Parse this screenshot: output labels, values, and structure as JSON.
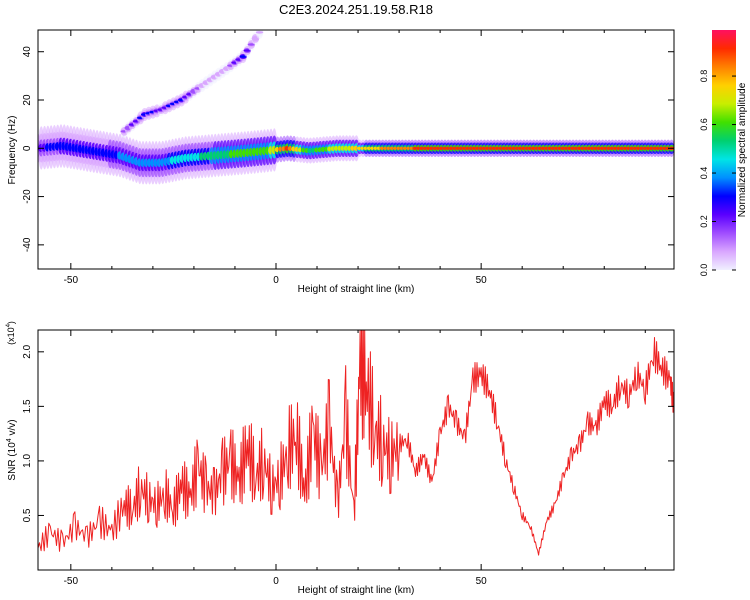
{
  "figure_title": "C2E3.2024.251.19.58.R18",
  "chart_data": [
    {
      "type": "heatmap",
      "xlabel": "Height of straight line (km)",
      "ylabel": "Frequency (Hz)",
      "xlim": [
        -58,
        97
      ],
      "ylim": [
        -50,
        49
      ],
      "x_ticks": [
        -50,
        0,
        50
      ],
      "y_ticks": [
        40,
        20,
        0,
        -20,
        -40
      ],
      "colorbar": {
        "label": "Normalized spectral amplitude",
        "range": [
          0,
          0.99
        ],
        "ticks": [
          "0.0",
          "0.2",
          "0.4",
          "0.6",
          "0.8"
        ],
        "colors": [
          "#f0f0ff",
          "#d9a6ff",
          "#a04dff",
          "#5a00ff",
          "#0000ff",
          "#0090ff",
          "#00e5e5",
          "#00d070",
          "#40e000",
          "#c8ee00",
          "#ffd000",
          "#ff8000",
          "#ff2a00",
          "#ff1060"
        ]
      },
      "ridges": [
        {
          "description": "main spectral ridge",
          "points": [
            [
              -58,
              0
            ],
            [
              -52,
              1
            ],
            [
              -45,
              -1
            ],
            [
              -38,
              -3
            ],
            [
              -33,
              -6
            ],
            [
              -28,
              -6
            ],
            [
              -22,
              -4
            ],
            [
              -15,
              -3
            ],
            [
              -8,
              -2
            ],
            [
              -2,
              -1
            ],
            [
              3,
              0
            ],
            [
              8,
              -1
            ],
            [
              15,
              0
            ],
            [
              25,
              0
            ],
            [
              40,
              0
            ],
            [
              60,
              0
            ],
            [
              80,
              0
            ],
            [
              97,
              0
            ]
          ],
          "amplitude": [
            0.25,
            0.3,
            0.3,
            0.35,
            0.4,
            0.4,
            0.45,
            0.55,
            0.6,
            0.65,
            0.9,
            0.55,
            0.7,
            0.8,
            0.95,
            0.95,
            0.92,
            0.9
          ]
        },
        {
          "description": "rising streak",
          "points": [
            [
              -37,
              7
            ],
            [
              -32,
              14
            ],
            [
              -28,
              16
            ],
            [
              -23,
              20
            ],
            [
              -18,
              26
            ],
            [
              -12,
              33
            ],
            [
              -8,
              38
            ],
            [
              -4,
              48
            ]
          ],
          "amplitude": [
            0.15,
            0.3,
            0.25,
            0.3,
            0.1,
            0.1,
            0.3,
            0.05
          ]
        }
      ]
    },
    {
      "type": "line",
      "xlabel": "Height of straight line (km)",
      "ylabel": "SNR (10^4 v/v)",
      "ylabel_base": "SNR (10",
      "ylabel_exp": "4",
      "ylabel_tail": " v/v)",
      "multiplier_base": "(x10",
      "multiplier_exp": "4",
      "multiplier_tail": ")",
      "xlim": [
        -58,
        97
      ],
      "ylim": [
        0,
        2.2
      ],
      "x_ticks": [
        -50,
        0,
        50
      ],
      "y_ticks": [
        0.5,
        1.0,
        1.5,
        2.0
      ],
      "y_tick_labels": [
        "0.5",
        "1.0",
        "1.5",
        "2.0"
      ],
      "series": [
        {
          "color": "#ee2222",
          "x": [
            -58,
            -55,
            -52,
            -49,
            -46,
            -43,
            -40,
            -37,
            -35,
            -33,
            -31,
            -29,
            -27,
            -25,
            -23,
            -21,
            -19,
            -17,
            -15,
            -13,
            -11,
            -9,
            -7,
            -5,
            -3,
            -1,
            1,
            3,
            5,
            7,
            9,
            11,
            13,
            15,
            17,
            19,
            20.5,
            22,
            24,
            26,
            28,
            30,
            32,
            34,
            36,
            38,
            40,
            42,
            44,
            46,
            48,
            50,
            52,
            54,
            56,
            58,
            60,
            62,
            64,
            66,
            68,
            70,
            72,
            74,
            76,
            78,
            80,
            82,
            84,
            86,
            88,
            90,
            92,
            94,
            96,
            97
          ],
          "y": [
            0.2,
            0.35,
            0.25,
            0.4,
            0.3,
            0.45,
            0.35,
            0.6,
            0.55,
            0.75,
            0.65,
            0.6,
            0.7,
            0.55,
            0.8,
            0.65,
            0.95,
            0.75,
            0.7,
            0.9,
            1.0,
            0.8,
            1.15,
            0.85,
            1.0,
            0.75,
            0.85,
            1.1,
            1.25,
            0.7,
            1.3,
            0.9,
            1.35,
            0.6,
            1.4,
            0.5,
            1.9,
            1.7,
            1.3,
            1.15,
            1.05,
            1.15,
            1.2,
            0.9,
            1.05,
            0.8,
            1.25,
            1.5,
            1.35,
            1.2,
            1.75,
            1.8,
            1.65,
            1.35,
            1.0,
            0.75,
            0.5,
            0.4,
            0.15,
            0.45,
            0.6,
            0.85,
            1.05,
            1.15,
            1.35,
            1.3,
            1.55,
            1.5,
            1.7,
            1.6,
            1.8,
            1.65,
            2.0,
            1.85,
            1.75,
            1.5
          ]
        }
      ]
    }
  ]
}
